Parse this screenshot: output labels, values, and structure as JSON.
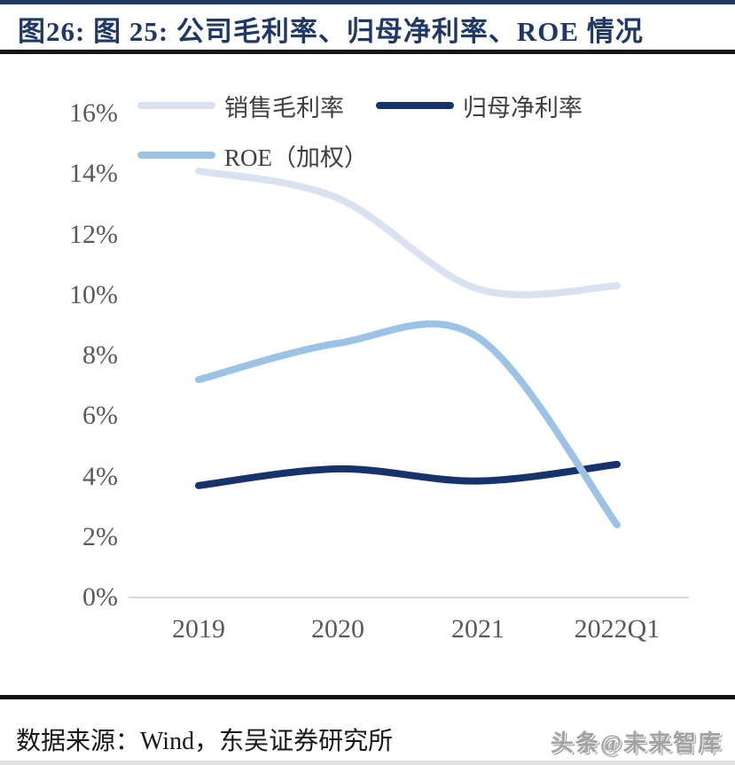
{
  "header": {
    "title": "图26: 图 25: 公司毛利率、归母净利率、ROE 情况"
  },
  "footer": {
    "source": "数据来源：Wind，东吴证券研究所",
    "watermark": "头条@未来智库"
  },
  "colors": {
    "title_navy": "#1f3864",
    "rule_black": "#141414",
    "axis_gray": "#d9d9d9",
    "tick_text_gray": "#595959",
    "legend_text_gray": "#3f3f3f",
    "watermark_gray": "#a3a3a3"
  },
  "chart_data": {
    "type": "line",
    "smooth": true,
    "categories": [
      "2019",
      "2020",
      "2021",
      "2022Q1"
    ],
    "series": [
      {
        "name": "销售毛利率",
        "color": "#d9e2f1",
        "values": [
          14.1,
          13.2,
          10.2,
          10.3
        ]
      },
      {
        "name": "归母净利率",
        "color": "#16336b",
        "values": [
          3.7,
          4.25,
          3.85,
          4.4
        ]
      },
      {
        "name": "ROE（加权）",
        "color": "#9cc3e6",
        "values": [
          7.2,
          8.4,
          8.6,
          2.4
        ]
      }
    ],
    "ylim": [
      0,
      16
    ],
    "ytick_step": 2,
    "ytick_labels": [
      "0%",
      "2%",
      "4%",
      "6%",
      "8%",
      "10%",
      "12%",
      "14%",
      "16%"
    ],
    "xlabel": "",
    "ylabel": "",
    "grid": false,
    "legend_position": "top-left",
    "axis_line_color": "#d9d9d9"
  }
}
